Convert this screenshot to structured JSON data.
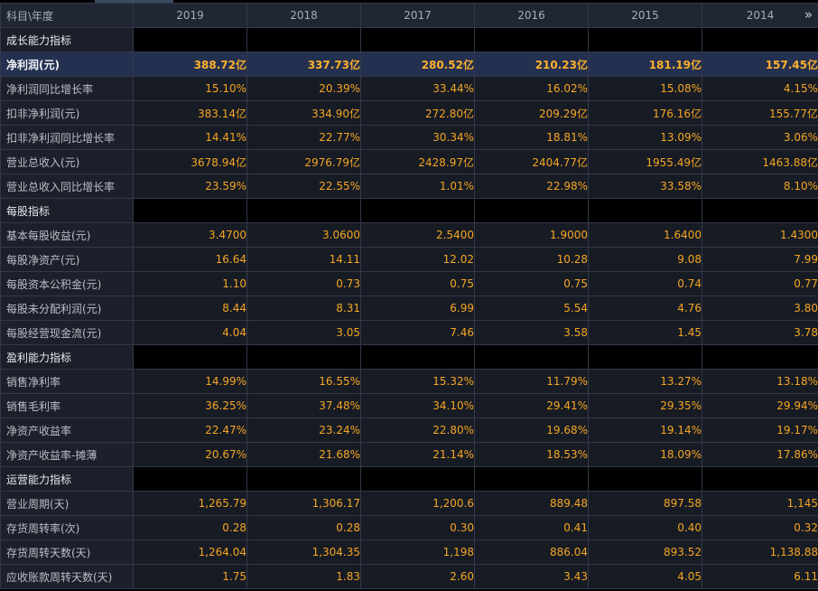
{
  "header": {
    "label": "科目\\年度",
    "years": [
      "2019",
      "2018",
      "2017",
      "2016",
      "2015",
      "2014"
    ],
    "scroll_icon": "double-chevron-right-icon"
  },
  "colors": {
    "background": "#000000",
    "value_text": "#f5a623",
    "label_text": "#b9bec8",
    "highlight_row": "#243050"
  },
  "sections": [
    {
      "title": "成长能力指标",
      "rows": [
        {
          "label": "净利润(元)",
          "highlight": true,
          "values": [
            "388.72亿",
            "337.73亿",
            "280.52亿",
            "210.23亿",
            "181.19亿",
            "157.45亿"
          ]
        },
        {
          "label": "净利润同比增长率",
          "values": [
            "15.10%",
            "20.39%",
            "33.44%",
            "16.02%",
            "15.08%",
            "4.15%"
          ]
        },
        {
          "label": "扣非净利润(元)",
          "values": [
            "383.14亿",
            "334.90亿",
            "272.80亿",
            "209.29亿",
            "176.16亿",
            "155.77亿"
          ]
        },
        {
          "label": "扣非净利润同比增长率",
          "values": [
            "14.41%",
            "22.77%",
            "30.34%",
            "18.81%",
            "13.09%",
            "3.06%"
          ]
        },
        {
          "label": "营业总收入(元)",
          "values": [
            "3678.94亿",
            "2976.79亿",
            "2428.97亿",
            "2404.77亿",
            "1955.49亿",
            "1463.88亿"
          ]
        },
        {
          "label": "营业总收入同比增长率",
          "values": [
            "23.59%",
            "22.55%",
            "1.01%",
            "22.98%",
            "33.58%",
            "8.10%"
          ]
        }
      ]
    },
    {
      "title": "每股指标",
      "rows": [
        {
          "label": "基本每股收益(元)",
          "values": [
            "3.4700",
            "3.0600",
            "2.5400",
            "1.9000",
            "1.6400",
            "1.4300"
          ]
        },
        {
          "label": "每股净资产(元)",
          "values": [
            "16.64",
            "14.11",
            "12.02",
            "10.28",
            "9.08",
            "7.99"
          ]
        },
        {
          "label": "每股资本公积金(元)",
          "values": [
            "1.10",
            "0.73",
            "0.75",
            "0.75",
            "0.74",
            "0.77"
          ]
        },
        {
          "label": "每股未分配利润(元)",
          "values": [
            "8.44",
            "8.31",
            "6.99",
            "5.54",
            "4.76",
            "3.80"
          ]
        },
        {
          "label": "每股经营现金流(元)",
          "values": [
            "4.04",
            "3.05",
            "7.46",
            "3.58",
            "1.45",
            "3.78"
          ]
        }
      ]
    },
    {
      "title": "盈利能力指标",
      "rows": [
        {
          "label": "销售净利率",
          "values": [
            "14.99%",
            "16.55%",
            "15.32%",
            "11.79%",
            "13.27%",
            "13.18%"
          ]
        },
        {
          "label": "销售毛利率",
          "values": [
            "36.25%",
            "37.48%",
            "34.10%",
            "29.41%",
            "29.35%",
            "29.94%"
          ]
        },
        {
          "label": "净资产收益率",
          "values": [
            "22.47%",
            "23.24%",
            "22.80%",
            "19.68%",
            "19.14%",
            "19.17%"
          ]
        },
        {
          "label": "净资产收益率-摊薄",
          "values": [
            "20.67%",
            "21.68%",
            "21.14%",
            "18.53%",
            "18.09%",
            "17.86%"
          ]
        }
      ]
    },
    {
      "title": "运营能力指标",
      "rows": [
        {
          "label": "营业周期(天)",
          "values": [
            "1,265.79",
            "1,306.17",
            "1,200.6",
            "889.48",
            "897.58",
            "1,145"
          ]
        },
        {
          "label": "存货周转率(次)",
          "values": [
            "0.28",
            "0.28",
            "0.30",
            "0.41",
            "0.40",
            "0.32"
          ]
        },
        {
          "label": "存货周转天数(天)",
          "values": [
            "1,264.04",
            "1,304.35",
            "1,198",
            "886.04",
            "893.52",
            "1,138.88"
          ]
        },
        {
          "label": "应收账款周转天数(天)",
          "values": [
            "1.75",
            "1.83",
            "2.60",
            "3.43",
            "4.05",
            "6.11"
          ]
        }
      ]
    }
  ]
}
